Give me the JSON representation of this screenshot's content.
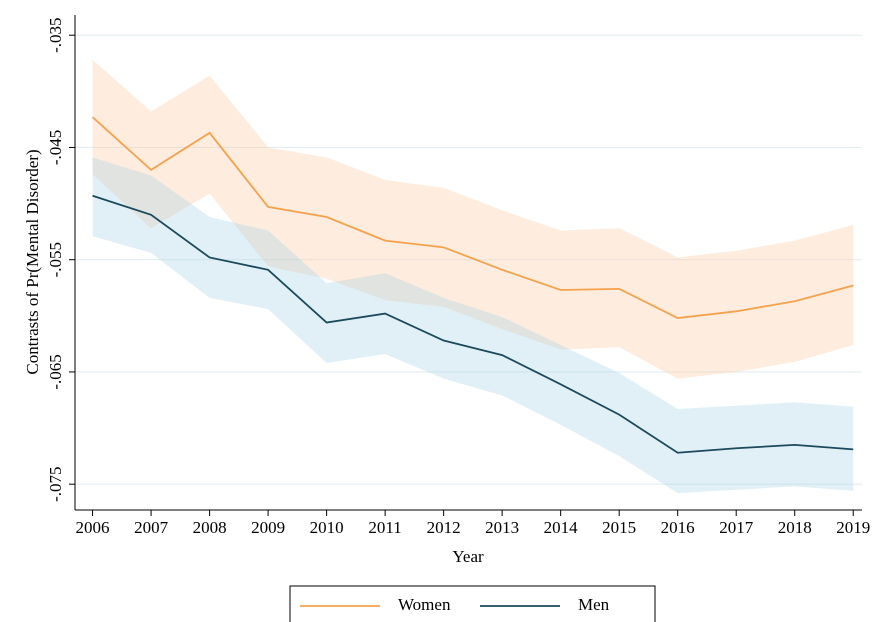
{
  "chart_data": {
    "type": "line",
    "y_label": "Contrasts of Pr(Mental Disorder)",
    "x_label": "Year",
    "x": [
      2006,
      2007,
      2008,
      2009,
      2010,
      2011,
      2012,
      2013,
      2014,
      2015,
      2016,
      2017,
      2018,
      2019
    ],
    "xlim": [
      2005.7,
      2019.15
    ],
    "xticks": [
      2006,
      2007,
      2008,
      2009,
      2010,
      2011,
      2012,
      2013,
      2014,
      2015,
      2016,
      2017,
      2018,
      2019
    ],
    "ylim": [
      -0.0773,
      -0.0332
    ],
    "yticks": [
      {
        "value": -0.035,
        "label": "-.035"
      },
      {
        "value": -0.045,
        "label": "-.045"
      },
      {
        "value": -0.055,
        "label": "-.055"
      },
      {
        "value": -0.065,
        "label": "-.065"
      },
      {
        "value": -0.075,
        "label": "-.075"
      }
    ],
    "grid": true,
    "legend": "bottom",
    "series": [
      {
        "name": "Women",
        "color": "#f5a24d",
        "band_color": "#fbc9a0",
        "values": [
          -0.0423,
          -0.047,
          -0.0437,
          -0.0503,
          -0.0512,
          -0.0533,
          -0.0539,
          -0.0559,
          -0.0577,
          -0.0576,
          -0.0602,
          -0.0596,
          -0.0587,
          -0.0573
        ],
        "upper": [
          -0.0372,
          -0.0418,
          -0.0386,
          -0.045,
          -0.0459,
          -0.0479,
          -0.0486,
          -0.0506,
          -0.0524,
          -0.0522,
          -0.0548,
          -0.0542,
          -0.0533,
          -0.0519
        ],
        "lower": [
          -0.0474,
          -0.0522,
          -0.0491,
          -0.0556,
          -0.0567,
          -0.0586,
          -0.0592,
          -0.0612,
          -0.063,
          -0.0628,
          -0.0656,
          -0.065,
          -0.0641,
          -0.0626
        ]
      },
      {
        "name": "Men",
        "color": "#1b4a5c",
        "band_color": "#a9d5e6",
        "values": [
          -0.0493,
          -0.051,
          -0.0548,
          -0.0559,
          -0.0606,
          -0.0598,
          -0.0622,
          -0.0635,
          -0.0661,
          -0.0688,
          -0.0722,
          -0.0718,
          -0.0715,
          -0.0719
        ],
        "upper": [
          -0.0459,
          -0.0475,
          -0.0512,
          -0.0524,
          -0.0571,
          -0.0562,
          -0.0584,
          -0.0601,
          -0.0626,
          -0.0651,
          -0.0683,
          -0.068,
          -0.0677,
          -0.0681
        ],
        "lower": [
          -0.0529,
          -0.0544,
          -0.0584,
          -0.0594,
          -0.0642,
          -0.0634,
          -0.0656,
          -0.0671,
          -0.0697,
          -0.0725,
          -0.0758,
          -0.0755,
          -0.0752,
          -0.0756
        ]
      }
    ]
  }
}
